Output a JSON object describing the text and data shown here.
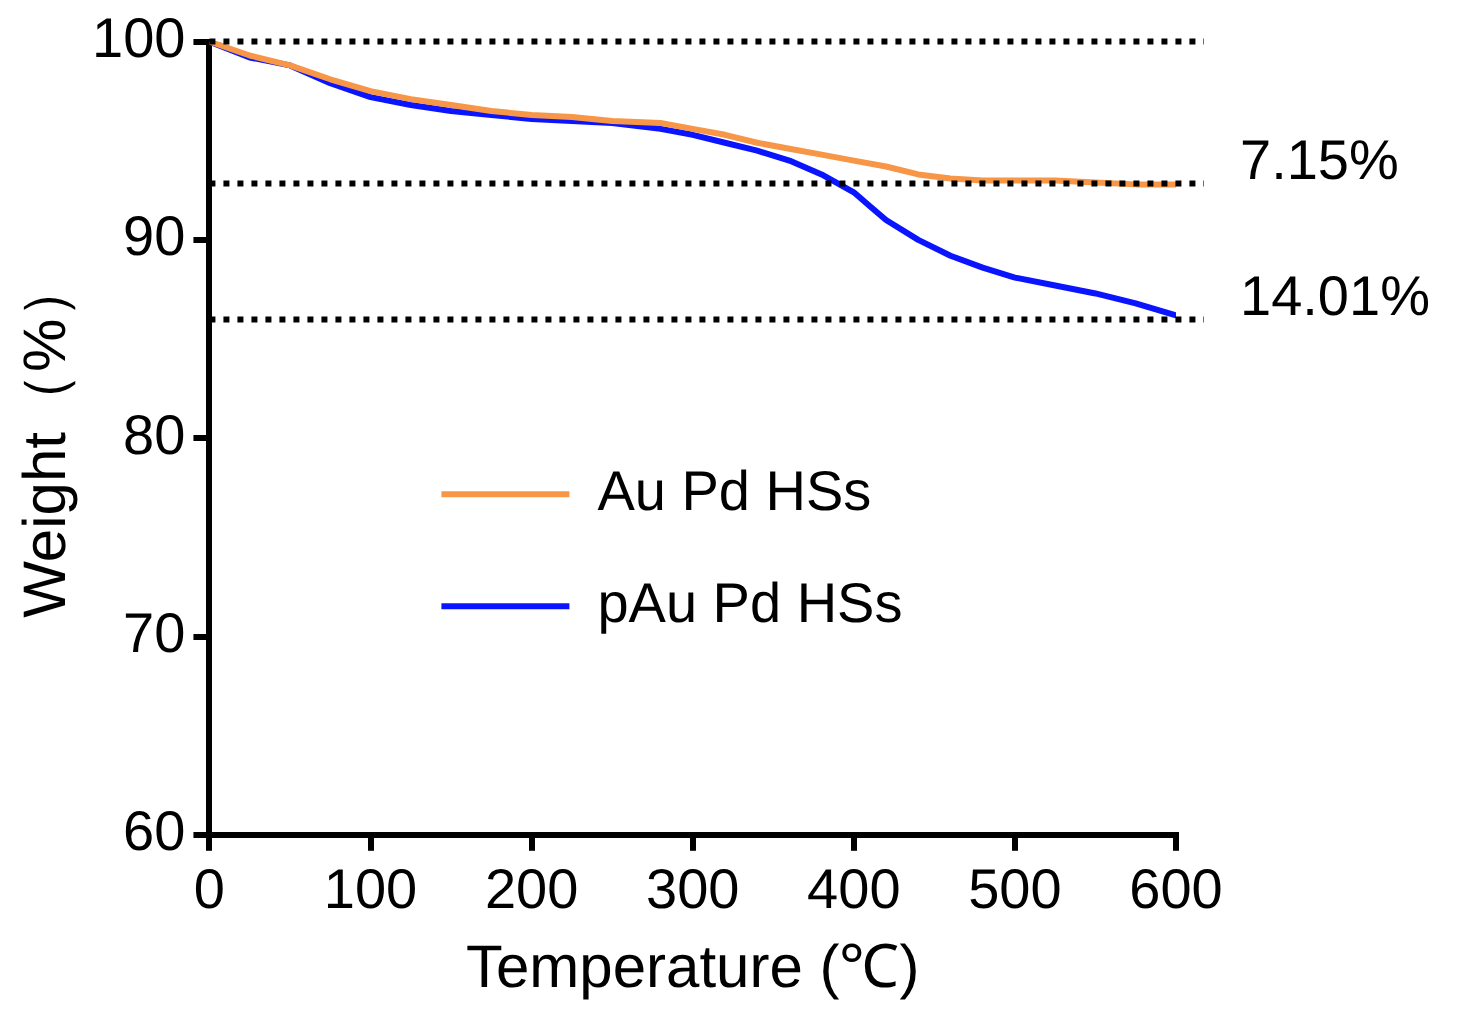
{
  "chart_data": {
    "type": "line",
    "xlabel": "Temperature (℃)",
    "ylabel": "Weight（%）",
    "xlim": [
      0,
      600
    ],
    "xticks": [
      0,
      100,
      200,
      300,
      400,
      500,
      600
    ],
    "ylim": [
      60,
      100
    ],
    "yticks": [
      60,
      70,
      80,
      90,
      100
    ],
    "grid": false,
    "legend": "center",
    "marker": "none",
    "line_style": "solid",
    "series": [
      {
        "name": "Au Pd HSs",
        "color": "#f79646",
        "x": [
          0,
          25,
          50,
          75,
          100,
          125,
          150,
          175,
          200,
          225,
          250,
          280,
          300,
          320,
          340,
          360,
          380,
          400,
          420,
          440,
          460,
          480,
          500,
          525,
          550,
          575,
          600
        ],
        "values": [
          100,
          99.3,
          98.8,
          98.1,
          97.5,
          97.1,
          96.8,
          96.5,
          96.3,
          96.2,
          96.0,
          95.9,
          95.6,
          95.3,
          94.9,
          94.6,
          94.3,
          94.0,
          93.7,
          93.3,
          93.1,
          93.0,
          93.0,
          93.0,
          92.9,
          92.8,
          92.8
        ]
      },
      {
        "name": "pAu Pd HSs",
        "color": "#0a14ff",
        "x": [
          0,
          25,
          50,
          75,
          100,
          125,
          150,
          175,
          200,
          225,
          250,
          280,
          300,
          320,
          340,
          360,
          380,
          400,
          410,
          420,
          440,
          460,
          480,
          500,
          525,
          550,
          575,
          600
        ],
        "values": [
          100,
          99.2,
          98.8,
          97.9,
          97.2,
          96.8,
          96.5,
          96.3,
          96.1,
          96.0,
          95.9,
          95.6,
          95.3,
          94.9,
          94.5,
          94.0,
          93.3,
          92.4,
          91.7,
          91.0,
          90.0,
          89.2,
          88.6,
          88.1,
          87.7,
          87.3,
          86.8,
          86.2
        ]
      }
    ],
    "ref_lines": [
      {
        "axis": "y",
        "value": 100,
        "label": null,
        "color": "#000000",
        "line_style": "dotted"
      },
      {
        "axis": "y",
        "value": 92.85,
        "label": null,
        "color": "#000000",
        "line_style": "dotted"
      },
      {
        "axis": "y",
        "value": 85.99,
        "label": null,
        "color": "#000000",
        "line_style": "dotted"
      }
    ],
    "annotations": [
      {
        "text": "7.15%",
        "x": 600,
        "y": 92.85
      },
      {
        "text": "14.01%",
        "x": 600,
        "y": 85.99
      }
    ]
  }
}
